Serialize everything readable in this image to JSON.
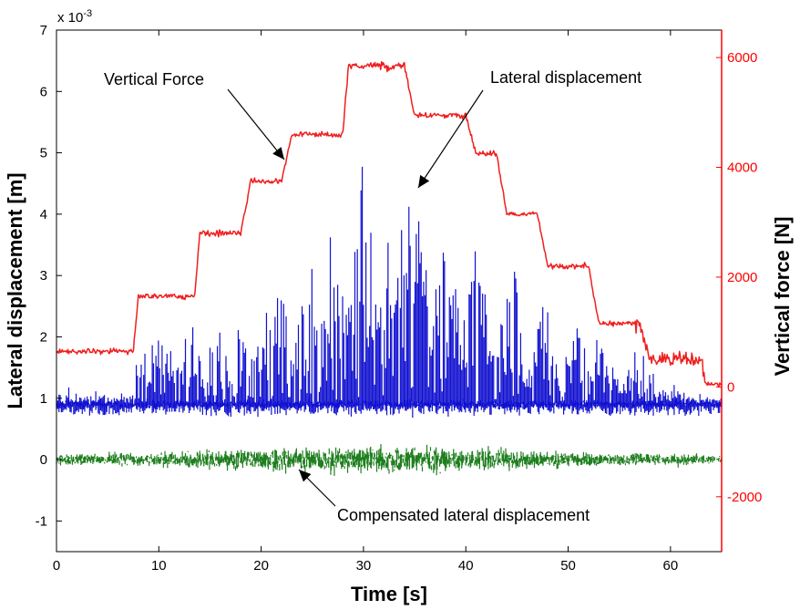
{
  "colors": {
    "lateral": "#1010d0",
    "compensated": "#1f7f1f",
    "force": "#ef1f1f",
    "axis": "#000000",
    "right_axis": "#ff0000"
  },
  "chart_data": {
    "type": "line",
    "xlabel": "Time [s]",
    "ylabel_left": "Lateral displacement [m]",
    "ylabel_right": "Vertical force [N]",
    "left_scale_label": "x 10^-3",
    "left_scale_base": "x 10",
    "left_scale_exp": "-3",
    "xlim": [
      0,
      65
    ],
    "ylim_left": [
      -1.5,
      7
    ],
    "ylim_right": [
      -3000,
      6500
    ],
    "xticks": [
      "0",
      "10",
      "20",
      "30",
      "40",
      "50",
      "60"
    ],
    "yticks_left": [
      "-1",
      "0",
      "1",
      "2",
      "3",
      "4",
      "5",
      "6",
      "7"
    ],
    "yticks_right": [
      "-2000",
      "0",
      "2000",
      "4000",
      "6000"
    ],
    "annotations": [
      "Vertical Force",
      "Lateral displacement",
      "Compensated lateral displacement"
    ],
    "series": [
      {
        "name": "Vertical Force",
        "axis": "right",
        "x": [
          0,
          7.5,
          8,
          13.5,
          14,
          18,
          19,
          22,
          23,
          28,
          28.5,
          34,
          35,
          40,
          41,
          43,
          44,
          47,
          48,
          52,
          53,
          57,
          58,
          63,
          63.5,
          65
        ],
        "values": [
          650,
          650,
          1650,
          1650,
          2800,
          2800,
          3750,
          3750,
          4600,
          4600,
          5850,
          5850,
          4950,
          4950,
          4250,
          4250,
          3150,
          3150,
          2200,
          2200,
          1150,
          1150,
          500,
          500,
          50,
          50
        ]
      },
      {
        "name": "Lateral displacement",
        "axis": "left",
        "baseline": 0.9,
        "peaks": [
          {
            "t": 1,
            "amp": 1.25
          },
          {
            "t": 4,
            "amp": 1.15
          },
          {
            "t": 8.5,
            "amp": 2.0
          },
          {
            "t": 10,
            "amp": 2.35
          },
          {
            "t": 13,
            "amp": 2.45
          },
          {
            "t": 15.5,
            "amp": 2.6
          },
          {
            "t": 18.5,
            "amp": 2.95
          },
          {
            "t": 21.5,
            "amp": 3.3
          },
          {
            "t": 24.5,
            "amp": 3.5
          },
          {
            "t": 27.2,
            "amp": 4.4
          },
          {
            "t": 30,
            "amp": 5.3
          },
          {
            "t": 33,
            "amp": 4.8
          },
          {
            "t": 35,
            "amp": 5.2
          },
          {
            "t": 38,
            "amp": 4.45
          },
          {
            "t": 41,
            "amp": 3.95
          },
          {
            "t": 44.5,
            "amp": 3.2
          },
          {
            "t": 47.5,
            "amp": 2.95
          },
          {
            "t": 50.5,
            "amp": 2.55
          },
          {
            "t": 53.5,
            "amp": 2.25
          },
          {
            "t": 57,
            "amp": 1.95
          },
          {
            "t": 60,
            "amp": 1.35
          },
          {
            "t": 63,
            "amp": 1.15
          }
        ]
      },
      {
        "name": "Compensated lateral displacement",
        "axis": "left",
        "baseline": 0.0,
        "noise_amplitude": 0.35
      }
    ]
  }
}
